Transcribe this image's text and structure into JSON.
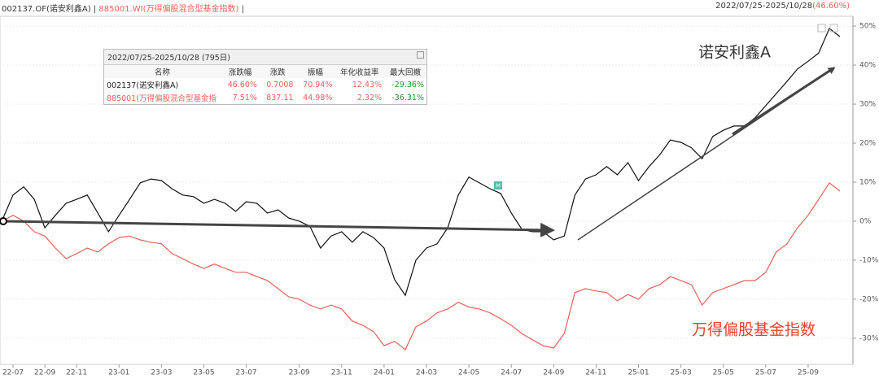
{
  "header": {
    "fund": "002137.OF(诺安利鑫A)",
    "separator": "|",
    "index": "885001.WI(万得偏股混合型基金指数)",
    "range": "2022/07/25-2025/10/28",
    "change": "(46.60%)"
  },
  "chart_data": {
    "type": "line",
    "categories": [
      null,
      "22-07",
      null,
      null,
      "22-09",
      null,
      null,
      "22-11",
      null,
      null,
      null,
      "23-01",
      null,
      null,
      null,
      "23-03",
      null,
      null,
      null,
      "23-05",
      null,
      null,
      null,
      "23-07",
      null,
      null,
      null,
      null,
      "23-09",
      null,
      null,
      null,
      "23-11",
      null,
      null,
      null,
      "24-01",
      null,
      null,
      null,
      "24-03",
      null,
      null,
      null,
      "24-05",
      null,
      null,
      null,
      "24-07",
      null,
      null,
      null,
      "24-09",
      null,
      null,
      null,
      "24-11",
      null,
      null,
      null,
      "25-01",
      null,
      null,
      null,
      "25-03",
      null,
      null,
      null,
      "25-05",
      null,
      null,
      null,
      "25-07",
      null,
      null,
      null,
      "25-09",
      null,
      null,
      null
    ],
    "series": [
      {
        "name": "诺安利鑫A",
        "color": "#111111",
        "values": [
          0.4,
          6.7,
          8.8,
          5.6,
          -1.7,
          1.5,
          4.6,
          5.6,
          6.7,
          2.1,
          -2.7,
          1.5,
          5.6,
          9.8,
          10.8,
          10.4,
          8.3,
          6.7,
          6.3,
          4.6,
          5.6,
          4.6,
          2.5,
          5.0,
          4.6,
          2.1,
          2.9,
          0.8,
          0,
          -1.3,
          -6.9,
          -3.8,
          -2.7,
          -5.4,
          -2.7,
          -4.2,
          -6.9,
          -15,
          -19,
          -10,
          -6.9,
          -5.8,
          -1.7,
          6.7,
          11.3,
          9.8,
          8.3,
          7.1,
          2.1,
          -2.1,
          -2.7,
          -2.7,
          -4.8,
          -3.8,
          6.7,
          10.8,
          11.9,
          14.0,
          11.9,
          15,
          10.4,
          14,
          17,
          20.8,
          20.2,
          18.8,
          16,
          21.7,
          23.3,
          24.4,
          24.4,
          26.5,
          29.6,
          32.7,
          35.8,
          39,
          41,
          43.1,
          49.4,
          47.3
        ]
      },
      {
        "name": "万得偏股基金指数",
        "color": "#e8625a",
        "values": [
          0,
          1.5,
          0,
          -2.7,
          -3.8,
          -6.9,
          -9.6,
          -8.3,
          -6.9,
          -7.9,
          -5.8,
          -4.2,
          -3.8,
          -4.8,
          -5.4,
          -5.8,
          -8.3,
          -9.6,
          -11,
          -12.1,
          -11,
          -12.1,
          -13.1,
          -13.1,
          -14.2,
          -15.2,
          -17.3,
          -19.4,
          -20,
          -21.5,
          -22.5,
          -21.5,
          -22.5,
          -25.6,
          -26.7,
          -28.3,
          -31.9,
          -30.8,
          -32.9,
          -27.1,
          -25.6,
          -23.5,
          -22.5,
          -20.8,
          -22,
          -22.5,
          -23.5,
          -25,
          -26.7,
          -28.8,
          -30.4,
          -31.9,
          -32.5,
          -28.8,
          -18.3,
          -17.3,
          -17.9,
          -18.3,
          -20.4,
          -18.8,
          -20,
          -17.3,
          -16.3,
          -14.2,
          -15.2,
          -16.3,
          -21.5,
          -18.3,
          -17.3,
          -16.3,
          -15.2,
          -15.2,
          -13.1,
          -7.9,
          -5.8,
          -1.7,
          1.5,
          5.6,
          9.8,
          7.7
        ]
      }
    ],
    "ylim": [
      -36.7,
      52.1
    ],
    "yticks": [
      {
        "value": 50,
        "label": "50%"
      },
      {
        "value": 40,
        "label": "40%"
      },
      {
        "value": 30,
        "label": "30%"
      },
      {
        "value": 20,
        "label": "20%"
      },
      {
        "value": 10,
        "label": "10%"
      },
      {
        "value": 0,
        "label": "0%"
      },
      {
        "value": -10,
        "label": "-10%"
      },
      {
        "value": -20,
        "label": "-20%"
      },
      {
        "value": -30,
        "label": "-30%"
      }
    ],
    "grid": true,
    "marker": "M"
  },
  "stats_table": {
    "title": "2022/07/25-2025/10/28 (795日)",
    "columns": [
      "名称",
      "涨跌幅",
      "涨跌",
      "振幅",
      "年化收益率",
      "最大回撤"
    ],
    "rows": [
      [
        "002137(诺安利鑫A)",
        "46.60%",
        "0.7008",
        "70.94%",
        "12.43%",
        "-29.36%"
      ],
      [
        "885001(万得偏股混合型基金指",
        "7.51%",
        "837.11",
        "44.98%",
        "2.32%",
        "-36.31%"
      ]
    ]
  }
}
